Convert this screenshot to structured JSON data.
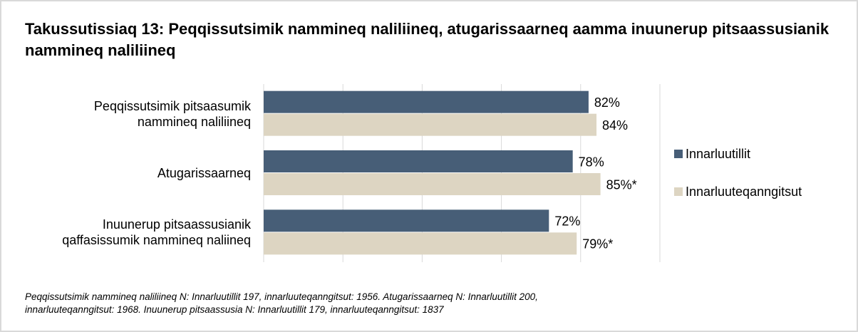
{
  "chart_data": {
    "type": "bar",
    "orientation": "horizontal",
    "title": "Takussutissiaq 13: Peqqissutsimik nammineq naliliineq, atugarissaarneq aamma inuunerup pitsaassusianik nammineq naliliineq",
    "categories": [
      "Peqqissutsimik pitsaasumik nammineq naliliineq",
      "Atugarissaarneq",
      "Inuunerup pitsaassusianik qaffasissumik nammineq naliineq"
    ],
    "series": [
      {
        "name": "Innarluutillit",
        "color": "#475e77",
        "values": [
          82,
          78,
          72
        ],
        "value_labels": [
          "82%",
          "78%",
          "72%"
        ]
      },
      {
        "name": "Innarluuteqanngitsut",
        "color": "#ddd5c2",
        "values": [
          84,
          85,
          79
        ],
        "value_labels": [
          "84%",
          "85%*",
          "79%*"
        ]
      }
    ],
    "xlim": [
      0,
      100
    ],
    "xticks": [
      0,
      20,
      40,
      60,
      80,
      100
    ],
    "grid": true,
    "legend": "right",
    "notes": [
      "Peqqissutsimik nammineq naliliineq N: Innarluutillit 197, innarluuteqanngitsut: 1956. Atugarissaarneq N: Innarluutillit 200,",
      "innarluuteqanngitsut: 1968. Inuunerup pitsaassusia N: Innarluutillit 179, innarluuteqanngitsut: 1837"
    ]
  }
}
